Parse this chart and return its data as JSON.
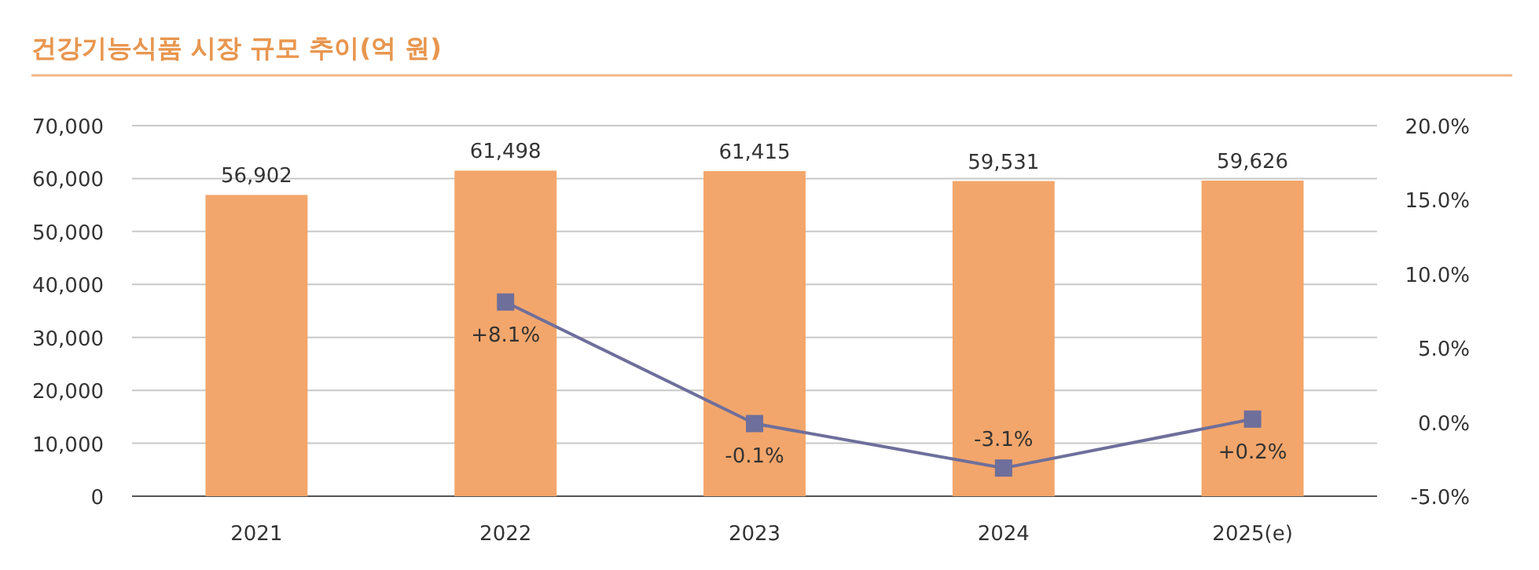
{
  "chart_data": {
    "type": "bar",
    "title": "건강기능식품 시장 규모 추이(억 원)",
    "categories": [
      "2021",
      "2022",
      "2023",
      "2024",
      "2025(e)"
    ],
    "series": [
      {
        "color": "#f3a66b",
        "values": [
          56902,
          61498,
          61415,
          59531,
          59626
        ],
        "value_labels": [
          "56,902",
          "61,498",
          "61,415",
          "59,531",
          "59,626"
        ]
      },
      {
        "type": "line",
        "axis": "y2",
        "color": "#6e6f9b",
        "marker": "square",
        "values": [
          null,
          8.1,
          -0.1,
          -3.1,
          0.2
        ],
        "value_labels": [
          null,
          "+8.1%",
          "-0.1%",
          "-3.1%",
          "+0.2%"
        ]
      }
    ],
    "ylim": [
      0,
      70000
    ],
    "yticks": [
      {
        "value": 0,
        "label": "0"
      },
      {
        "value": 10000,
        "label": "10,000"
      },
      {
        "value": 20000,
        "label": "20,000"
      },
      {
        "value": 30000,
        "label": "30,000"
      },
      {
        "value": 40000,
        "label": "40,000"
      },
      {
        "value": 50000,
        "label": "50,000"
      },
      {
        "value": 60000,
        "label": "60,000"
      },
      {
        "value": 70000,
        "label": "70,000"
      }
    ],
    "y2lim": [
      -5,
      20
    ],
    "y2ticks": [
      {
        "value": -5,
        "label": "-5.0%"
      },
      {
        "value": 0,
        "label": "0.0%"
      },
      {
        "value": 5,
        "label": "5.0%"
      },
      {
        "value": 10,
        "label": "10.0%"
      },
      {
        "value": 15,
        "label": "15.0%"
      },
      {
        "value": 20,
        "label": "20.0%"
      }
    ],
    "grid": "y"
  }
}
